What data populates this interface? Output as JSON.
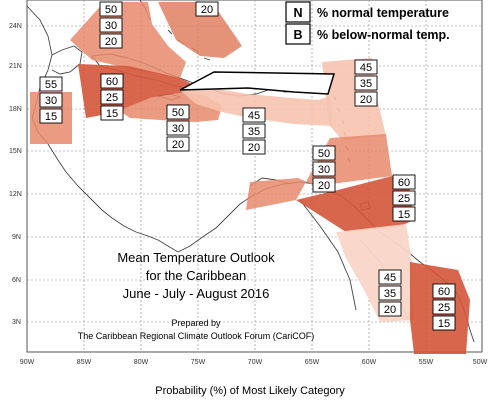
{
  "legend": {
    "items": [
      {
        "symbol": "N",
        "text": "% normal temperature"
      },
      {
        "symbol": "B",
        "text": "% below-normal temp."
      }
    ]
  },
  "title": {
    "line1": "Mean Temperature Outlook",
    "line2": "for the Caribbean",
    "line3": "June - July - August 2016"
  },
  "credit": {
    "line1": "Prepared by",
    "line2": "The Caribbean Regional Climate Outlook Forum (CariCOF)"
  },
  "bottom_label": "Probability (%) of Most Likely Category",
  "axes": {
    "lat_labels": [
      "24N",
      "21N",
      "18N",
      "15N",
      "12N",
      "9N",
      "6N",
      "3N"
    ],
    "lon_labels": [
      "90W",
      "85W",
      "80W",
      "75W",
      "70W",
      "65W",
      "60W",
      "55W",
      "50W"
    ]
  },
  "colors": {
    "dark": "#d4553a",
    "medium": "#e88a6c",
    "light": "#f6c3ae",
    "very_light": "#f9d6c8",
    "outline": "#000000"
  },
  "regions": [
    {
      "name": "bahamas-north",
      "values": [
        "50",
        "30",
        "20"
      ]
    },
    {
      "name": "cuba-east",
      "values": [
        "20"
      ]
    },
    {
      "name": "belize",
      "values": [
        "55",
        "30",
        "15"
      ]
    },
    {
      "name": "cayman-jamaica",
      "values": [
        "60",
        "25",
        "15"
      ]
    },
    {
      "name": "jamaica-south",
      "values": [
        "50",
        "30",
        "20"
      ]
    },
    {
      "name": "hispaniola-south",
      "values": [
        "45",
        "35",
        "20"
      ]
    },
    {
      "name": "lesser-antilles-north",
      "values": [
        "45",
        "35",
        "20"
      ]
    },
    {
      "name": "lesser-antilles-central",
      "values": [
        "50",
        "30",
        "20"
      ]
    },
    {
      "name": "lesser-antilles-south",
      "values": [
        "60",
        "25",
        "15"
      ]
    },
    {
      "name": "guyana",
      "values": [
        "45",
        "35",
        "20"
      ]
    },
    {
      "name": "suriname",
      "values": [
        "60",
        "25",
        "15"
      ]
    }
  ]
}
